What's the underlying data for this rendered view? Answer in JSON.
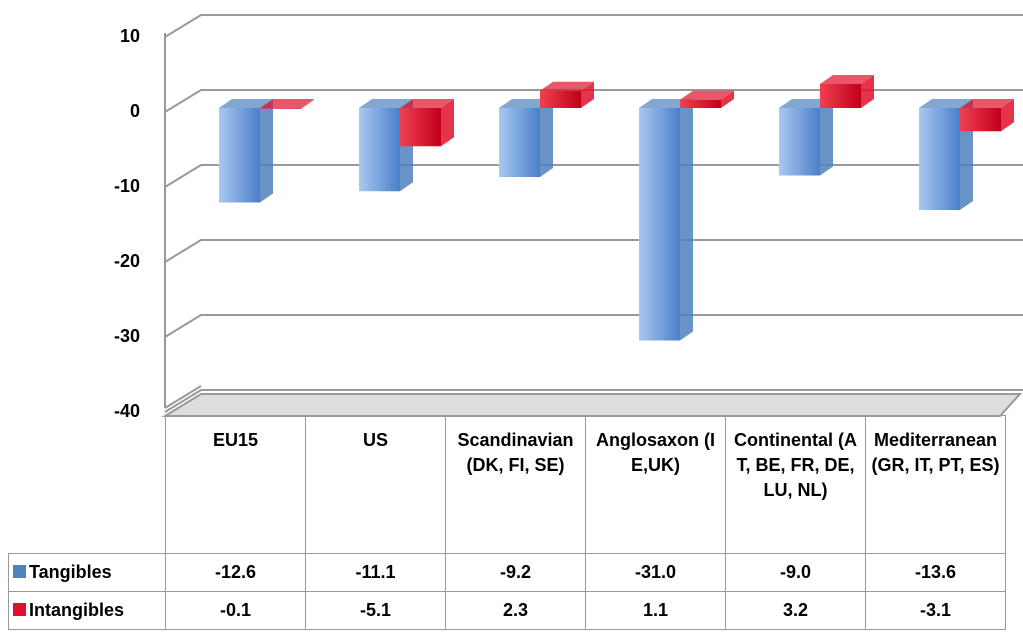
{
  "chart_data": {
    "type": "bar3d",
    "categories": [
      "EU15",
      "US",
      "Scandinavian (DK, FI, SE)",
      "Anglosaxon (IE,UK)",
      "Continental (AT, BE, FR, DE, LU, NL)",
      "Mediterranean (GR, IT, PT, ES)"
    ],
    "series": [
      {
        "name": "Tangibles",
        "color": "#4f81bd",
        "values": [
          -12.6,
          -11.1,
          -9.2,
          -31.0,
          -9.0,
          -13.6
        ],
        "value_labels": [
          "-12.6",
          "-11.1",
          "-9.2",
          "-31.0",
          "-9.0",
          "-13.6"
        ]
      },
      {
        "name": "Intangibles",
        "color": "#e0102a",
        "values": [
          -0.1,
          -5.1,
          2.3,
          1.1,
          3.2,
          -3.1
        ],
        "value_labels": [
          "-0.1",
          "-5.1",
          "2.3",
          "1.1",
          "3.2",
          "-3.1"
        ]
      }
    ],
    "ylim": [
      -40,
      10
    ],
    "yticks": [
      -40,
      -30,
      -20,
      -10,
      0,
      10
    ],
    "grid": true
  }
}
